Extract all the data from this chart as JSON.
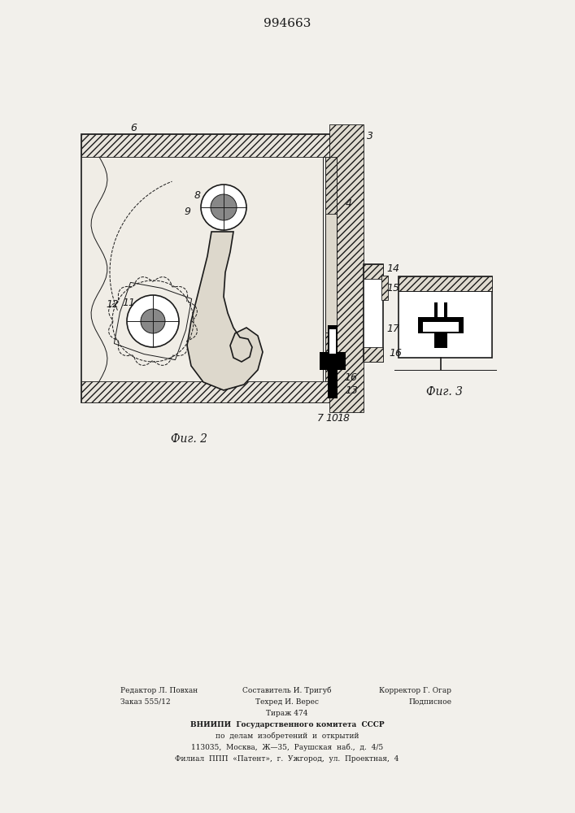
{
  "title": "994663",
  "title_fontsize": 11,
  "bg_color": "#f2f0eb",
  "line_color": "#1a1a1a",
  "fig2_label": "Фиг. 2",
  "fig3_label": "Фиг. 3",
  "footer_col1_line1": "Редактор Л. Повхан",
  "footer_col1_line2": "Заказ 555/12",
  "footer_col2_line1": "Составитель И. Тригуб",
  "footer_col2_line2": "Техред И. Верес",
  "footer_col2_line3": "Тираж 474",
  "footer_col3_line1": "Корректор Г. Огар",
  "footer_col3_line2": "Подписное",
  "footer_vniiipi": "ВНИИПИ  Государственного комитета  СССР",
  "footer_delam": "по  делам  изобретений  и  открытий",
  "footer_addr": "113035,  Москва,  Ж—35,  Раушская  наб.,  д.  4/5",
  "footer_filial": "Филиал  ППП  «Патент»,  г.  Ужгород,  ул.  Проектная,  4"
}
